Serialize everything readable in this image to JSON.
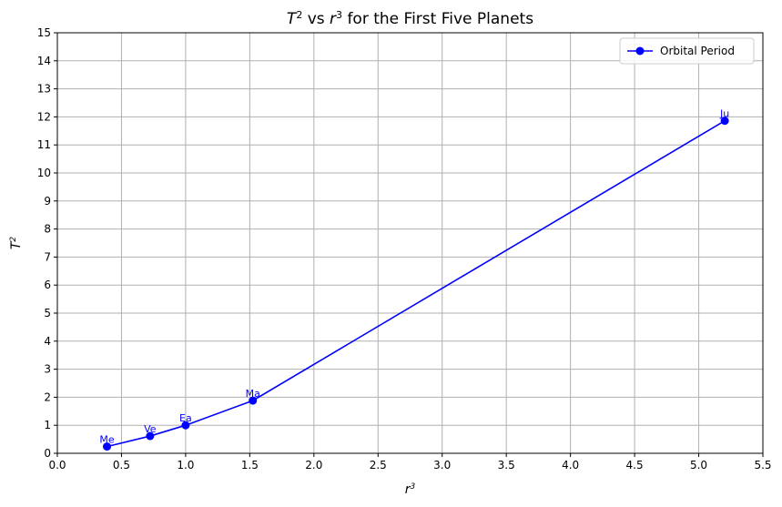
{
  "chart_data": {
    "type": "line",
    "title_parts": [
      {
        "text": "T",
        "italic": true
      },
      {
        "text": "2",
        "sup": true
      },
      {
        "text": " vs ",
        "italic": false
      },
      {
        "text": "r",
        "italic": true
      },
      {
        "text": "3",
        "sup": true
      },
      {
        "text": " for the First Five Planets",
        "italic": false
      }
    ],
    "xlabel": {
      "base": "r",
      "sup": "3"
    },
    "ylabel": {
      "base": "T",
      "sup": "2"
    },
    "xlim": [
      0.0,
      5.5
    ],
    "ylim": [
      0,
      15
    ],
    "xticks": [
      "0.0",
      "0.5",
      "1.0",
      "1.5",
      "2.0",
      "2.5",
      "3.0",
      "3.5",
      "4.0",
      "4.5",
      "5.0",
      "5.5"
    ],
    "yticks": [
      "0",
      "1",
      "2",
      "3",
      "4",
      "5",
      "6",
      "7",
      "8",
      "9",
      "10",
      "11",
      "12",
      "13",
      "14",
      "15"
    ],
    "grid": true,
    "legend_position": "top-right",
    "color": "#0000ff",
    "series": [
      {
        "name": "Orbital Period",
        "points": [
          {
            "x": 0.387,
            "y": 0.24,
            "label": "Me"
          },
          {
            "x": 0.723,
            "y": 0.615,
            "label": "Ve"
          },
          {
            "x": 1.0,
            "y": 1.0,
            "label": "Ea"
          },
          {
            "x": 1.524,
            "y": 1.88,
            "label": "Ma"
          },
          {
            "x": 5.203,
            "y": 11.86,
            "label": "Ju"
          }
        ]
      }
    ]
  }
}
